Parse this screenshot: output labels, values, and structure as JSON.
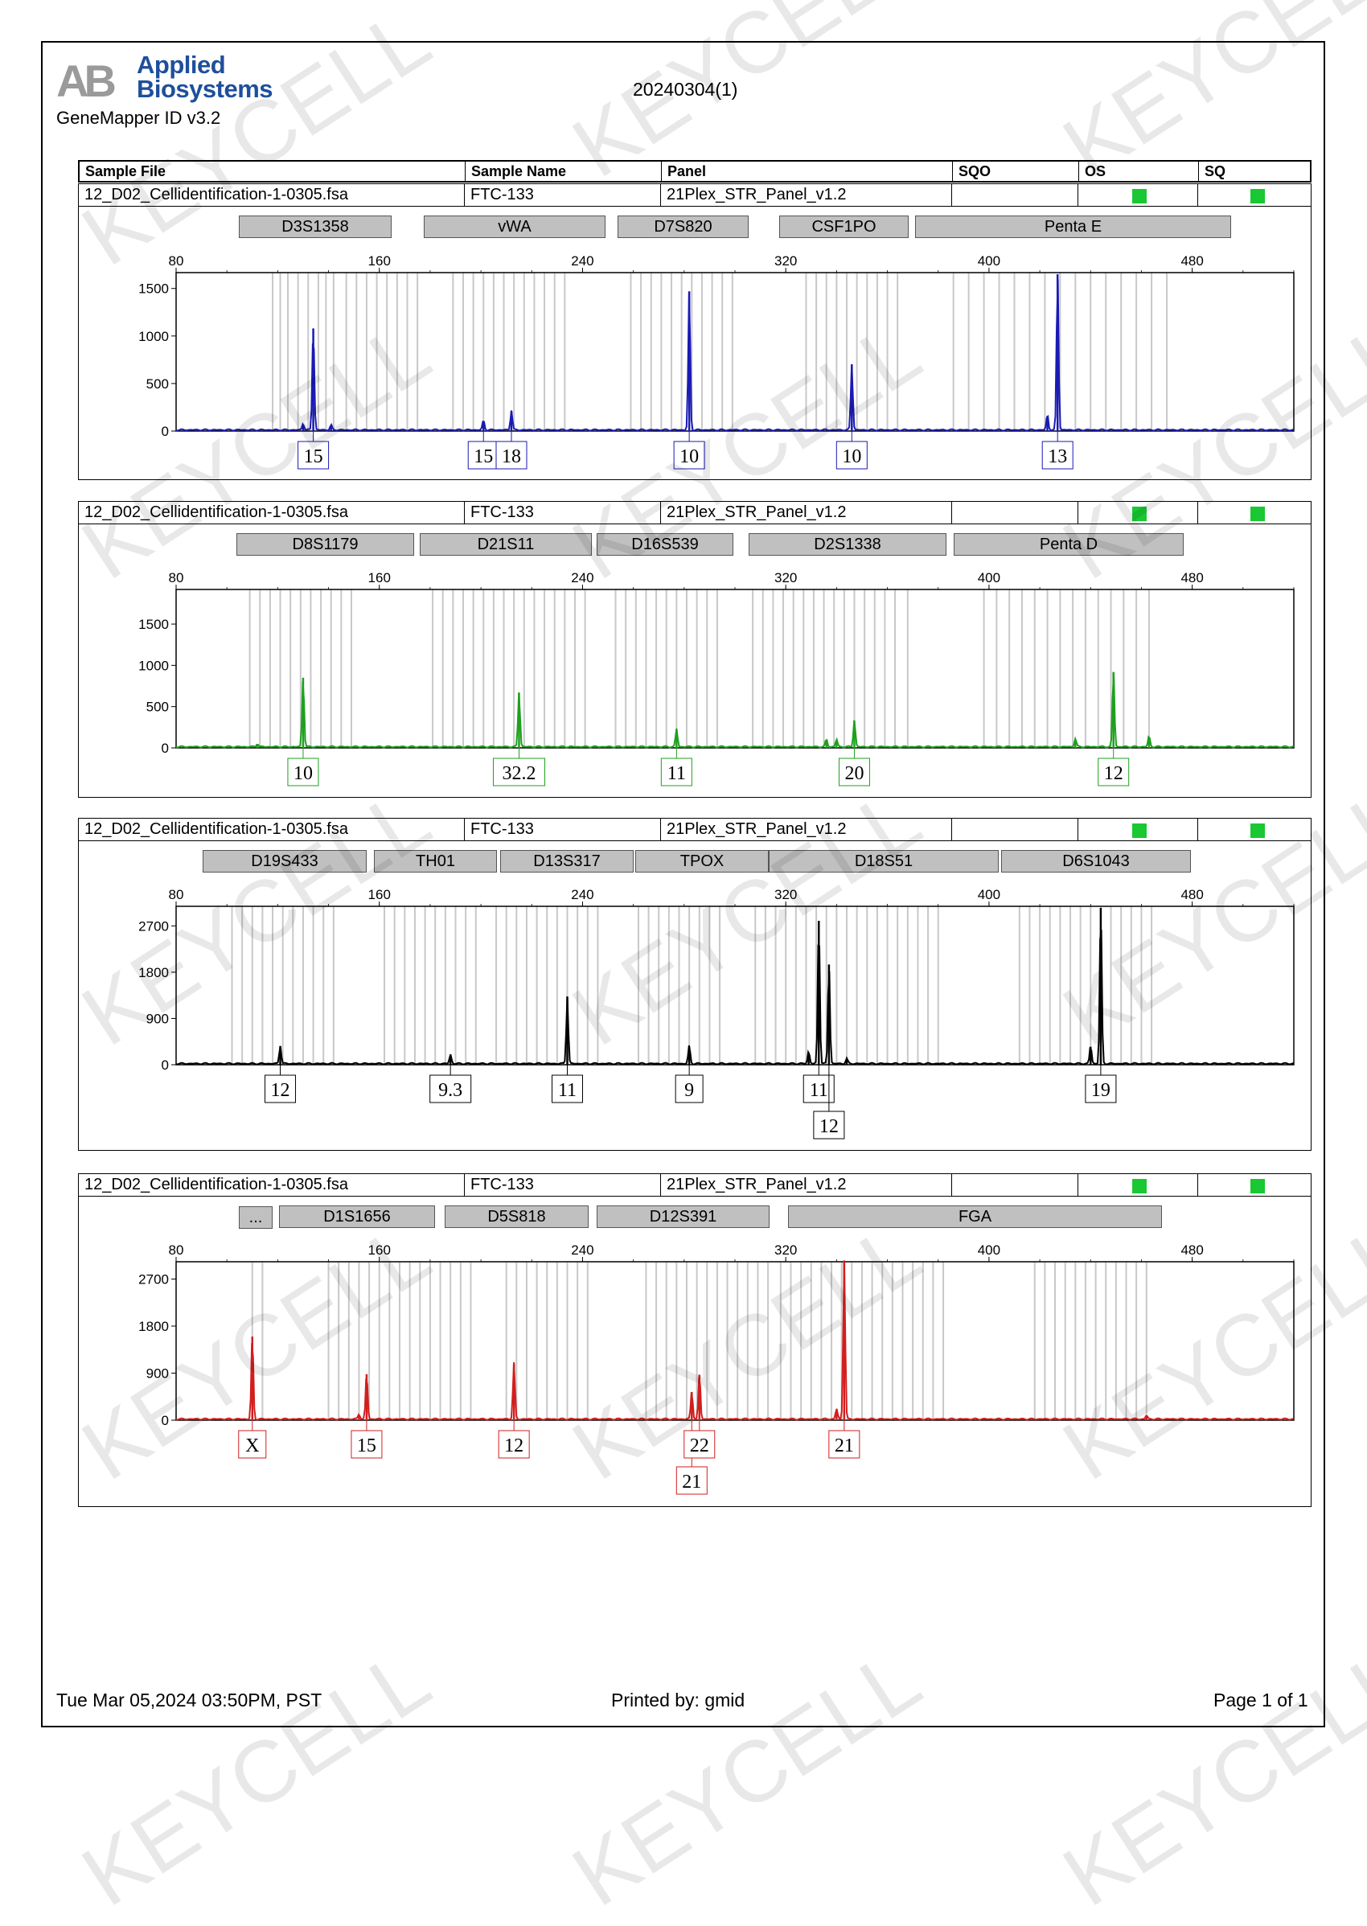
{
  "header": {
    "brand": [
      "Applied",
      "Biosystems"
    ],
    "version": "GeneMapper ID v3.2",
    "run_title": "20240304(1)",
    "columns": [
      "Sample File",
      "Sample Name",
      "Panel",
      "SQO",
      "OS",
      "SQ"
    ]
  },
  "qc_color": "#19c832",
  "watermark": "KEYCELL",
  "panels": [
    {
      "sample_file": "12_D02_Cellidentification-1-0305.fsa",
      "sample_name": "FTC-133",
      "panel": "21Plex_STR_Panel_v1.2",
      "color": "#1a1ab4",
      "markers": [
        "D3S1358",
        "vWA",
        "D7S820",
        "CSF1PO",
        "Penta E"
      ]
    },
    {
      "sample_file": "12_D02_Cellidentification-1-0305.fsa",
      "sample_name": "FTC-133",
      "panel": "21Plex_STR_Panel_v1.2",
      "color": "#1ea01e",
      "markers": [
        "D8S1179",
        "D21S11",
        "D16S539",
        "D2S1338",
        "Penta D"
      ]
    },
    {
      "sample_file": "12_D02_Cellidentification-1-0305.fsa",
      "sample_name": "FTC-133",
      "panel": "21Plex_STR_Panel_v1.2",
      "color": "#000000",
      "markers": [
        "D19S433",
        "TH01",
        "D13S317",
        "TPOX",
        "D18S51",
        "D6S1043"
      ]
    },
    {
      "sample_file": "12_D02_Cellidentification-1-0305.fsa",
      "sample_name": "FTC-133",
      "panel": "21Plex_STR_Panel_v1.2",
      "color": "#d21e1e",
      "markers": [
        "...",
        "D1S1656",
        "D5S818",
        "D12S391",
        "FGA"
      ]
    }
  ],
  "chart_data": [
    {
      "type": "line",
      "dye": "blue",
      "xlim": [
        80,
        520
      ],
      "xticks": [
        80,
        160,
        240,
        320,
        400,
        480
      ],
      "ylim": [
        0,
        1650
      ],
      "yticks": [
        0,
        500,
        1000,
        1500
      ],
      "peaks": [
        {
          "x": 134,
          "y": 1080,
          "allele": "15"
        },
        {
          "x": 130,
          "y": 70
        },
        {
          "x": 141,
          "y": 50
        },
        {
          "x": 201,
          "y": 100,
          "allele": "15"
        },
        {
          "x": 212,
          "y": 210,
          "allele": "18"
        },
        {
          "x": 282,
          "y": 1470,
          "allele": "10"
        },
        {
          "x": 346,
          "y": 700,
          "allele": "10"
        },
        {
          "x": 423,
          "y": 160
        },
        {
          "x": 427,
          "y": 1650,
          "allele": "13"
        }
      ],
      "bins": [
        118,
        121,
        124,
        128,
        132,
        136,
        139,
        142,
        147,
        151,
        155,
        159,
        163,
        167,
        171,
        175,
        189,
        193,
        197,
        201,
        205,
        209,
        213,
        217,
        221,
        225,
        229,
        233,
        259,
        263,
        267,
        271,
        275,
        279,
        283,
        287,
        291,
        295,
        299,
        328,
        332,
        336,
        340,
        344,
        348,
        352,
        356,
        360,
        364,
        386,
        392,
        398,
        404,
        410,
        416,
        422,
        428,
        434,
        440,
        446,
        452,
        458,
        464,
        470
      ]
    },
    {
      "type": "line",
      "dye": "green",
      "xlim": [
        80,
        520
      ],
      "xticks": [
        80,
        160,
        240,
        320,
        400,
        480
      ],
      "ylim": [
        0,
        1900
      ],
      "yticks": [
        0,
        500,
        1000,
        1500
      ],
      "peaks": [
        {
          "x": 130,
          "y": 850,
          "allele": "10"
        },
        {
          "x": 215,
          "y": 670,
          "allele": "32.2"
        },
        {
          "x": 112,
          "y": 40
        },
        {
          "x": 277,
          "y": 220,
          "allele": "11"
        },
        {
          "x": 336,
          "y": 90
        },
        {
          "x": 340,
          "y": 90
        },
        {
          "x": 347,
          "y": 330,
          "allele": "20"
        },
        {
          "x": 434,
          "y": 100
        },
        {
          "x": 449,
          "y": 920,
          "allele": "12"
        },
        {
          "x": 463,
          "y": 130
        }
      ],
      "bins": [
        109,
        113,
        117,
        121,
        125,
        129,
        133,
        137,
        141,
        145,
        149,
        181,
        185,
        189,
        193,
        197,
        201,
        205,
        209,
        213,
        217,
        221,
        225,
        229,
        233,
        237,
        241,
        253,
        257,
        261,
        265,
        269,
        273,
        277,
        281,
        285,
        289,
        293,
        307,
        311,
        315,
        319,
        323,
        327,
        331,
        335,
        339,
        343,
        347,
        351,
        355,
        359,
        363,
        368,
        398,
        403,
        408,
        413,
        418,
        423,
        428,
        433,
        438,
        443,
        448,
        453,
        458,
        463
      ]
    },
    {
      "type": "line",
      "dye": "black",
      "xlim": [
        80,
        520
      ],
      "xticks": [
        80,
        160,
        240,
        320,
        400,
        480
      ],
      "ylim": [
        0,
        3050
      ],
      "yticks": [
        0,
        900,
        1800,
        2700
      ],
      "peaks": [
        {
          "x": 121,
          "y": 360,
          "allele": "12"
        },
        {
          "x": 188,
          "y": 180,
          "allele": "9.3"
        },
        {
          "x": 234,
          "y": 1320,
          "allele": "11"
        },
        {
          "x": 282,
          "y": 350,
          "allele": "9"
        },
        {
          "x": 329,
          "y": 240
        },
        {
          "x": 333,
          "y": 2800,
          "allele": "11"
        },
        {
          "x": 337,
          "y": 1950,
          "allele": "12"
        },
        {
          "x": 344,
          "y": 100
        },
        {
          "x": 440,
          "y": 350
        },
        {
          "x": 444,
          "y": 3050,
          "allele": "19"
        }
      ],
      "bins": [
        102,
        106,
        110,
        114,
        118,
        122,
        126,
        130,
        134,
        138,
        142,
        162,
        166,
        170,
        174,
        178,
        182,
        186,
        190,
        194,
        198,
        206,
        210,
        214,
        218,
        222,
        226,
        230,
        234,
        238,
        242,
        246,
        262,
        266,
        270,
        274,
        278,
        282,
        286,
        290,
        294,
        308,
        312,
        316,
        320,
        324,
        328,
        332,
        336,
        340,
        344,
        348,
        352,
        356,
        360,
        364,
        368,
        372,
        376,
        380,
        412,
        416,
        420,
        424,
        428,
        432,
        436,
        440,
        444,
        448,
        452,
        456,
        460,
        464
      ]
    },
    {
      "type": "line",
      "dye": "red",
      "xlim": [
        80,
        520
      ],
      "xticks": [
        80,
        160,
        240,
        320,
        400,
        480
      ],
      "ylim": [
        0,
        3000
      ],
      "yticks": [
        0,
        900,
        1800,
        2700
      ],
      "peaks": [
        {
          "x": 110,
          "y": 1600,
          "allele": "X"
        },
        {
          "x": 152,
          "y": 100
        },
        {
          "x": 155,
          "y": 880,
          "allele": "15"
        },
        {
          "x": 213,
          "y": 1080,
          "allele": "12"
        },
        {
          "x": 283,
          "y": 540,
          "allele": "21"
        },
        {
          "x": 286,
          "y": 870,
          "allele": "22"
        },
        {
          "x": 340,
          "y": 200
        },
        {
          "x": 343,
          "y": 3050,
          "allele": "21"
        },
        {
          "x": 462,
          "y": 70
        }
      ],
      "bins": [
        110,
        114,
        140,
        144,
        148,
        152,
        156,
        160,
        164,
        168,
        172,
        176,
        180,
        184,
        188,
        192,
        196,
        210,
        214,
        218,
        222,
        226,
        230,
        234,
        238,
        242,
        265,
        269,
        273,
        277,
        281,
        285,
        289,
        293,
        297,
        301,
        305,
        309,
        313,
        318,
        322,
        326,
        330,
        334,
        338,
        342,
        346,
        350,
        354,
        358,
        362,
        366,
        370,
        374,
        378,
        382,
        418,
        422,
        426,
        430,
        434,
        438,
        442,
        446,
        450,
        454,
        458,
        462
      ]
    }
  ],
  "footer": {
    "date": "Tue Mar 05,2024 03:50PM, PST",
    "printed_by": "Printed by: gmid",
    "page": "Page 1 of 1"
  }
}
